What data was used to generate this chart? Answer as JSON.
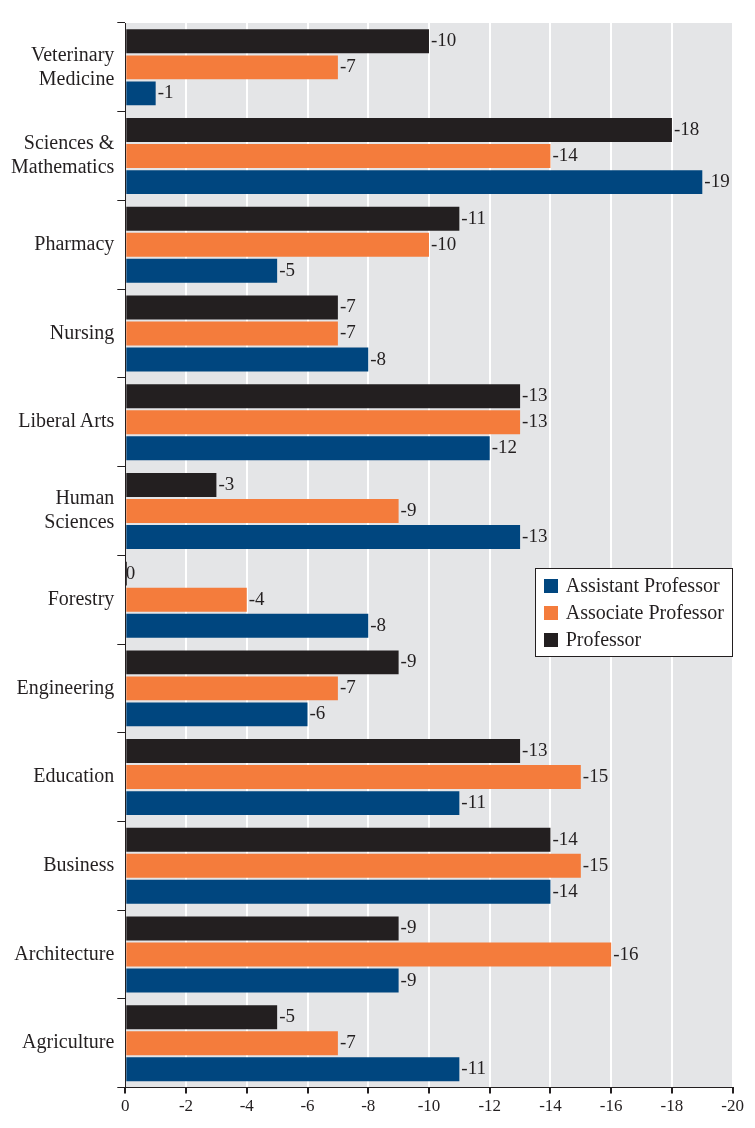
{
  "chart_data": {
    "type": "bar",
    "orientation": "horizontal",
    "categories": [
      "Veterinary Medicine",
      "Sciences & Mathematics",
      "Pharmacy",
      "Nursing",
      "Liberal Arts",
      "Human Sciences",
      "Forestry",
      "Engineering",
      "Education",
      "Business",
      "Architecture",
      "Agriculture"
    ],
    "series": [
      {
        "name": "Assistant Professor",
        "color": "#00467f",
        "values": [
          -1,
          -19,
          -5,
          -8,
          -12,
          -13,
          -8,
          -6,
          -11,
          -14,
          -9,
          -11
        ]
      },
      {
        "name": "Associate Professor",
        "color": "#f47c3c",
        "values": [
          -7,
          -14,
          -10,
          -7,
          -13,
          -9,
          -4,
          -7,
          -15,
          -15,
          -16,
          -7
        ]
      },
      {
        "name": "Professor",
        "color": "#231f20",
        "values": [
          -10,
          -18,
          -11,
          -7,
          -13,
          -3,
          0,
          -9,
          -13,
          -14,
          -9,
          -5
        ]
      }
    ],
    "xlim": [
      0,
      -20
    ],
    "xticks": [
      0,
      -2,
      -4,
      -6,
      -8,
      -10,
      -12,
      -14,
      -16,
      -18,
      -20
    ],
    "grid": "x",
    "legend": "right",
    "data_labels": true
  }
}
